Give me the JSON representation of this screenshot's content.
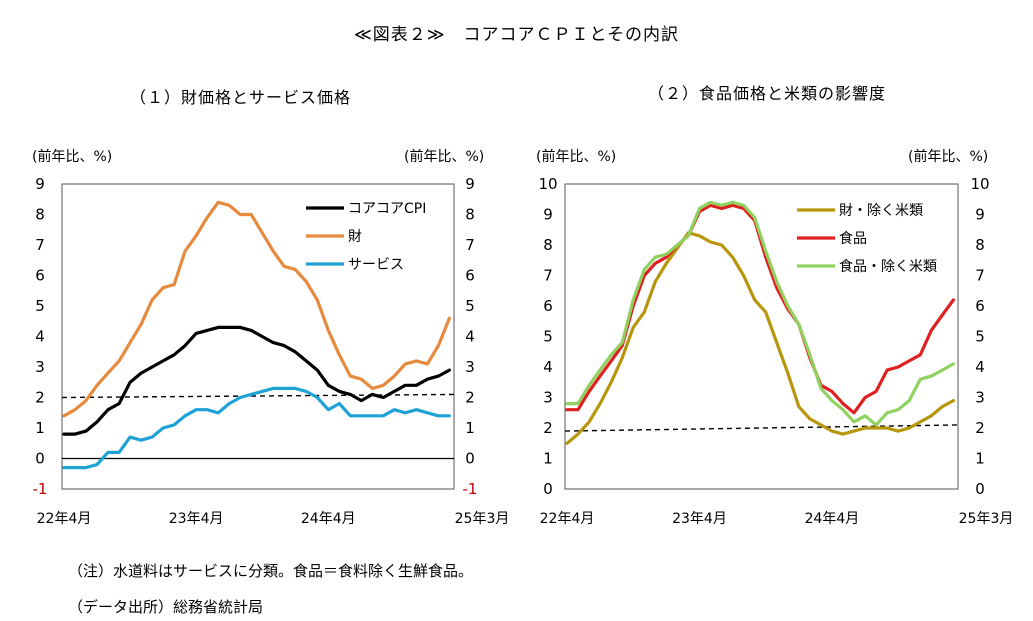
{
  "title": "≪図表２≫　コアコアＣＰＩとその内訳",
  "notes": [
    "（注）水道料はサービスに分類。食品＝食料除く生鮮食品。",
    "（データ出所）総務省統計局"
  ],
  "chart_data": [
    {
      "type": "line",
      "title": "（１）財価格とサービス価格",
      "y_unit_left": "(前年比、%)",
      "y_unit_right": "(前年比、%)",
      "ylim": [
        -1,
        9
      ],
      "yticks": [
        -1,
        0,
        1,
        2,
        3,
        4,
        5,
        6,
        7,
        8,
        9
      ],
      "x_tick_labels": [
        "22年4月",
        "23年4月",
        "24年4月",
        "25年3月"
      ],
      "x_tick_index": [
        0,
        12,
        24,
        35
      ],
      "x": [
        "22/4",
        "22/5",
        "22/6",
        "22/7",
        "22/8",
        "22/9",
        "22/10",
        "22/11",
        "22/12",
        "23/1",
        "23/2",
        "23/3",
        "23/4",
        "23/5",
        "23/6",
        "23/7",
        "23/8",
        "23/9",
        "23/10",
        "23/11",
        "23/12",
        "24/1",
        "24/2",
        "24/3",
        "24/4",
        "24/5",
        "24/6",
        "24/7",
        "24/8",
        "24/9",
        "24/10",
        "24/11",
        "24/12",
        "25/1",
        "25/2",
        "25/3"
      ],
      "legend_position": "top-right",
      "reference_line": 2,
      "reference_line_end": 2.1,
      "series": [
        {
          "name": "コアコアCPI",
          "color": "#000000",
          "values": [
            0.8,
            0.8,
            0.9,
            1.2,
            1.6,
            1.8,
            2.5,
            2.8,
            3.0,
            3.2,
            3.4,
            3.7,
            4.1,
            4.2,
            4.3,
            4.3,
            4.3,
            4.2,
            4.0,
            3.8,
            3.7,
            3.5,
            3.2,
            2.9,
            2.4,
            2.2,
            2.1,
            1.9,
            2.1,
            2.0,
            2.2,
            2.4,
            2.4,
            2.6,
            2.7,
            2.9
          ]
        },
        {
          "name": "財",
          "color": "#E68A3E",
          "values": [
            1.4,
            1.6,
            1.9,
            2.4,
            2.8,
            3.2,
            3.8,
            4.4,
            5.2,
            5.6,
            5.7,
            6.8,
            7.3,
            7.9,
            8.4,
            8.3,
            8.0,
            8.0,
            7.4,
            6.8,
            6.3,
            6.2,
            5.8,
            5.2,
            4.2,
            3.4,
            2.7,
            2.6,
            2.3,
            2.4,
            2.7,
            3.1,
            3.2,
            3.1,
            3.7,
            4.6
          ]
        },
        {
          "name": "サービス",
          "color": "#1FA2D6",
          "values": [
            -0.3,
            -0.3,
            -0.3,
            -0.2,
            0.2,
            0.2,
            0.7,
            0.6,
            0.7,
            1.0,
            1.1,
            1.4,
            1.6,
            1.6,
            1.5,
            1.8,
            2.0,
            2.1,
            2.2,
            2.3,
            2.3,
            2.3,
            2.2,
            2.0,
            1.6,
            1.8,
            1.4,
            1.4,
            1.4,
            1.4,
            1.6,
            1.5,
            1.6,
            1.5,
            1.4,
            1.4
          ]
        }
      ]
    },
    {
      "type": "line",
      "title": "（２）食品価格と米類の影響度",
      "y_unit_left": "(前年比、%)",
      "y_unit_right": "(前年比、%)",
      "ylim": [
        0,
        10
      ],
      "yticks": [
        0,
        1,
        2,
        3,
        4,
        5,
        6,
        7,
        8,
        9,
        10
      ],
      "x_tick_labels": [
        "22年4月",
        "23年4月",
        "24年4月",
        "25年3月"
      ],
      "x_tick_index": [
        0,
        12,
        24,
        35
      ],
      "x": [
        "22/4",
        "22/5",
        "22/6",
        "22/7",
        "22/8",
        "22/9",
        "22/10",
        "22/11",
        "22/12",
        "23/1",
        "23/2",
        "23/3",
        "23/4",
        "23/5",
        "23/6",
        "23/7",
        "23/8",
        "23/9",
        "23/10",
        "23/11",
        "23/12",
        "24/1",
        "24/2",
        "24/3",
        "24/4",
        "24/5",
        "24/6",
        "24/7",
        "24/8",
        "24/9",
        "24/10",
        "24/11",
        "24/12",
        "25/1",
        "25/2",
        "25/3"
      ],
      "legend_position": "top-right",
      "reference_line": 1.9,
      "reference_line_end": 2.1,
      "series": [
        {
          "name": "財・除く米類",
          "color": "#B8960C",
          "values": [
            1.5,
            1.8,
            2.2,
            2.8,
            3.5,
            4.3,
            5.3,
            5.8,
            6.8,
            7.4,
            7.9,
            8.4,
            8.3,
            8.1,
            8.0,
            7.6,
            7.0,
            6.2,
            5.8,
            4.8,
            3.8,
            2.7,
            2.3,
            2.1,
            1.9,
            1.8,
            1.9,
            2.0,
            2.0,
            2.0,
            1.9,
            2.0,
            2.2,
            2.4,
            2.7,
            2.9
          ]
        },
        {
          "name": "食品",
          "color": "#E02020",
          "values": [
            2.6,
            2.6,
            3.2,
            3.7,
            4.2,
            4.7,
            6.0,
            7.0,
            7.4,
            7.6,
            8.0,
            8.3,
            9.1,
            9.3,
            9.2,
            9.3,
            9.2,
            8.8,
            7.6,
            6.6,
            5.9,
            5.4,
            4.3,
            3.4,
            3.2,
            2.8,
            2.5,
            3.0,
            3.2,
            3.9,
            4.0,
            4.2,
            4.4,
            5.2,
            5.7,
            6.2
          ]
        },
        {
          "name": "食品・除く米類",
          "color": "#8FD25F",
          "values": [
            2.8,
            2.8,
            3.4,
            3.9,
            4.4,
            4.8,
            6.2,
            7.2,
            7.6,
            7.7,
            8.0,
            8.3,
            9.2,
            9.4,
            9.3,
            9.4,
            9.3,
            8.9,
            7.8,
            6.8,
            6.0,
            5.4,
            4.4,
            3.3,
            2.9,
            2.6,
            2.2,
            2.4,
            2.1,
            2.5,
            2.6,
            2.9,
            3.6,
            3.7,
            3.9,
            4.1
          ]
        }
      ]
    }
  ]
}
